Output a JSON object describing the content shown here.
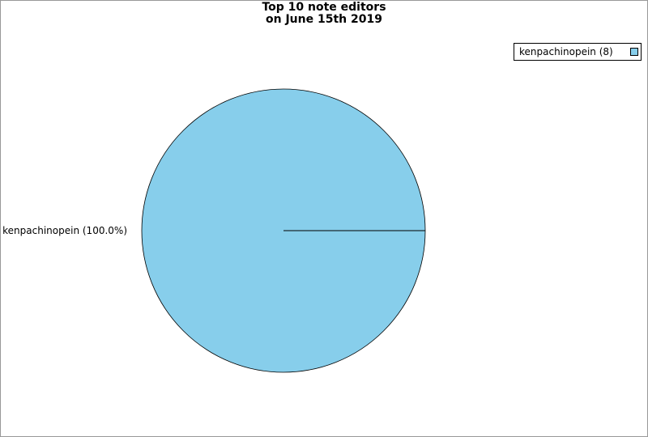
{
  "chart_data": {
    "type": "pie",
    "title_line1": "Top 10 note editors",
    "title_line2": "on June 15th 2019",
    "slices": [
      {
        "label": "kenpachinopein",
        "value": 8,
        "percent_label": "kenpachinopein (100.0%)",
        "legend_label": "kenpachinopein (8)",
        "color": "#87ceeb"
      }
    ],
    "legend_placement": "top-right"
  }
}
